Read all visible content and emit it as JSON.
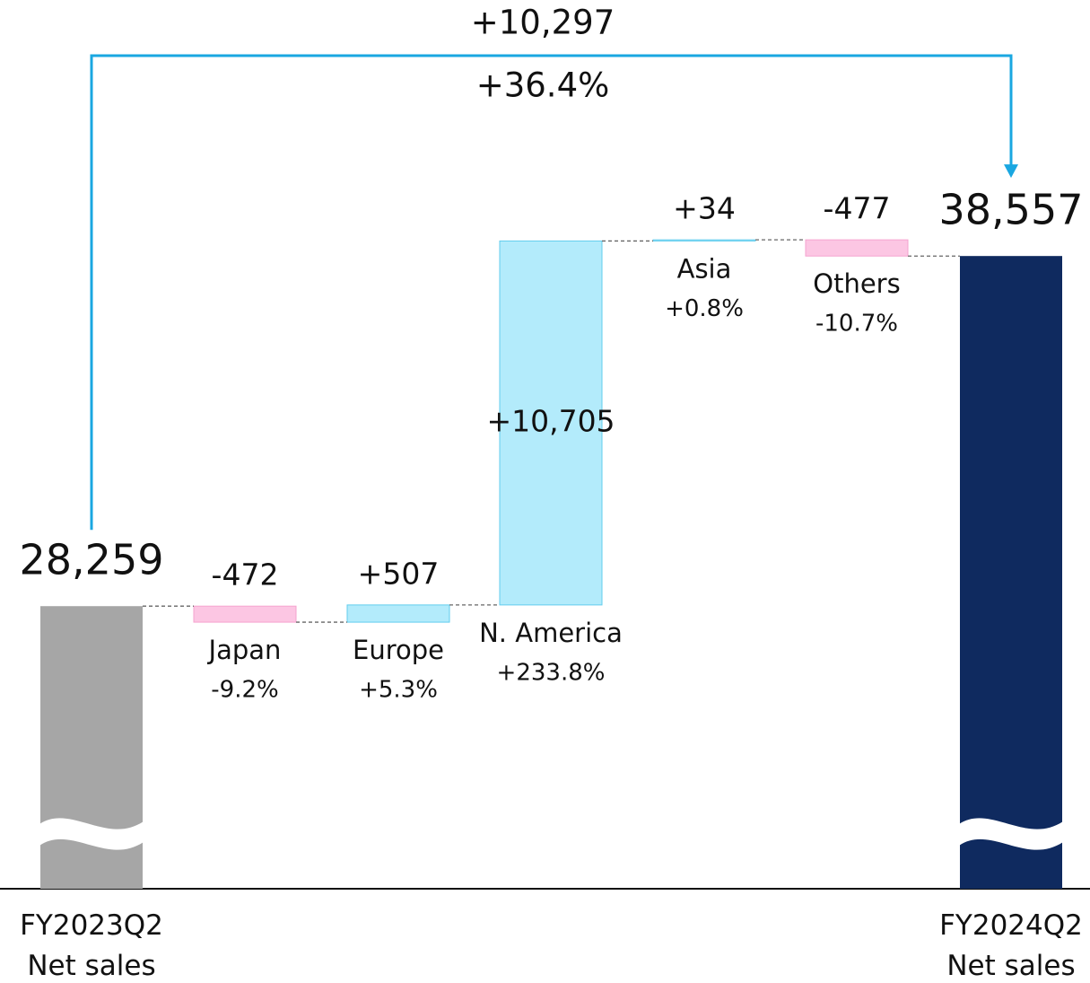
{
  "chart_data": {
    "type": "waterfall",
    "categories": [
      "FY2023Q2\nNet sales",
      "Japan",
      "Europe",
      "N. America",
      "Asia",
      "Others",
      "FY2024Q2\nNet sales"
    ],
    "measure": [
      "absolute",
      "relative",
      "relative",
      "relative",
      "relative",
      "relative",
      "total"
    ],
    "values": [
      28259,
      -472,
      507,
      10705,
      34,
      -477,
      38557
    ],
    "value_labels": [
      "28,259",
      "-472",
      "+507",
      "+10,705",
      "+34",
      "-477",
      "38,557"
    ],
    "changes": [
      null,
      -9.2,
      5.3,
      233.8,
      0.8,
      -10.7,
      null
    ],
    "change_labels": [
      null,
      "-9.2%",
      "+5.3%",
      "+233.8%",
      "+0.8%",
      "-10.7%",
      null
    ],
    "colors": [
      "#a6a6a6",
      "#fcc6e3",
      "#b3ebfb",
      "#b3ebfb",
      "#b3ebfb",
      "#fcc6e3",
      "#0f2a5f"
    ],
    "total_change": {
      "value": 10297,
      "label": "+10,297"
    },
    "total_change_pct": {
      "value": 36.4,
      "label": "+36.4%"
    },
    "ylim": [
      20000,
      39000
    ],
    "axis_break": true
  }
}
